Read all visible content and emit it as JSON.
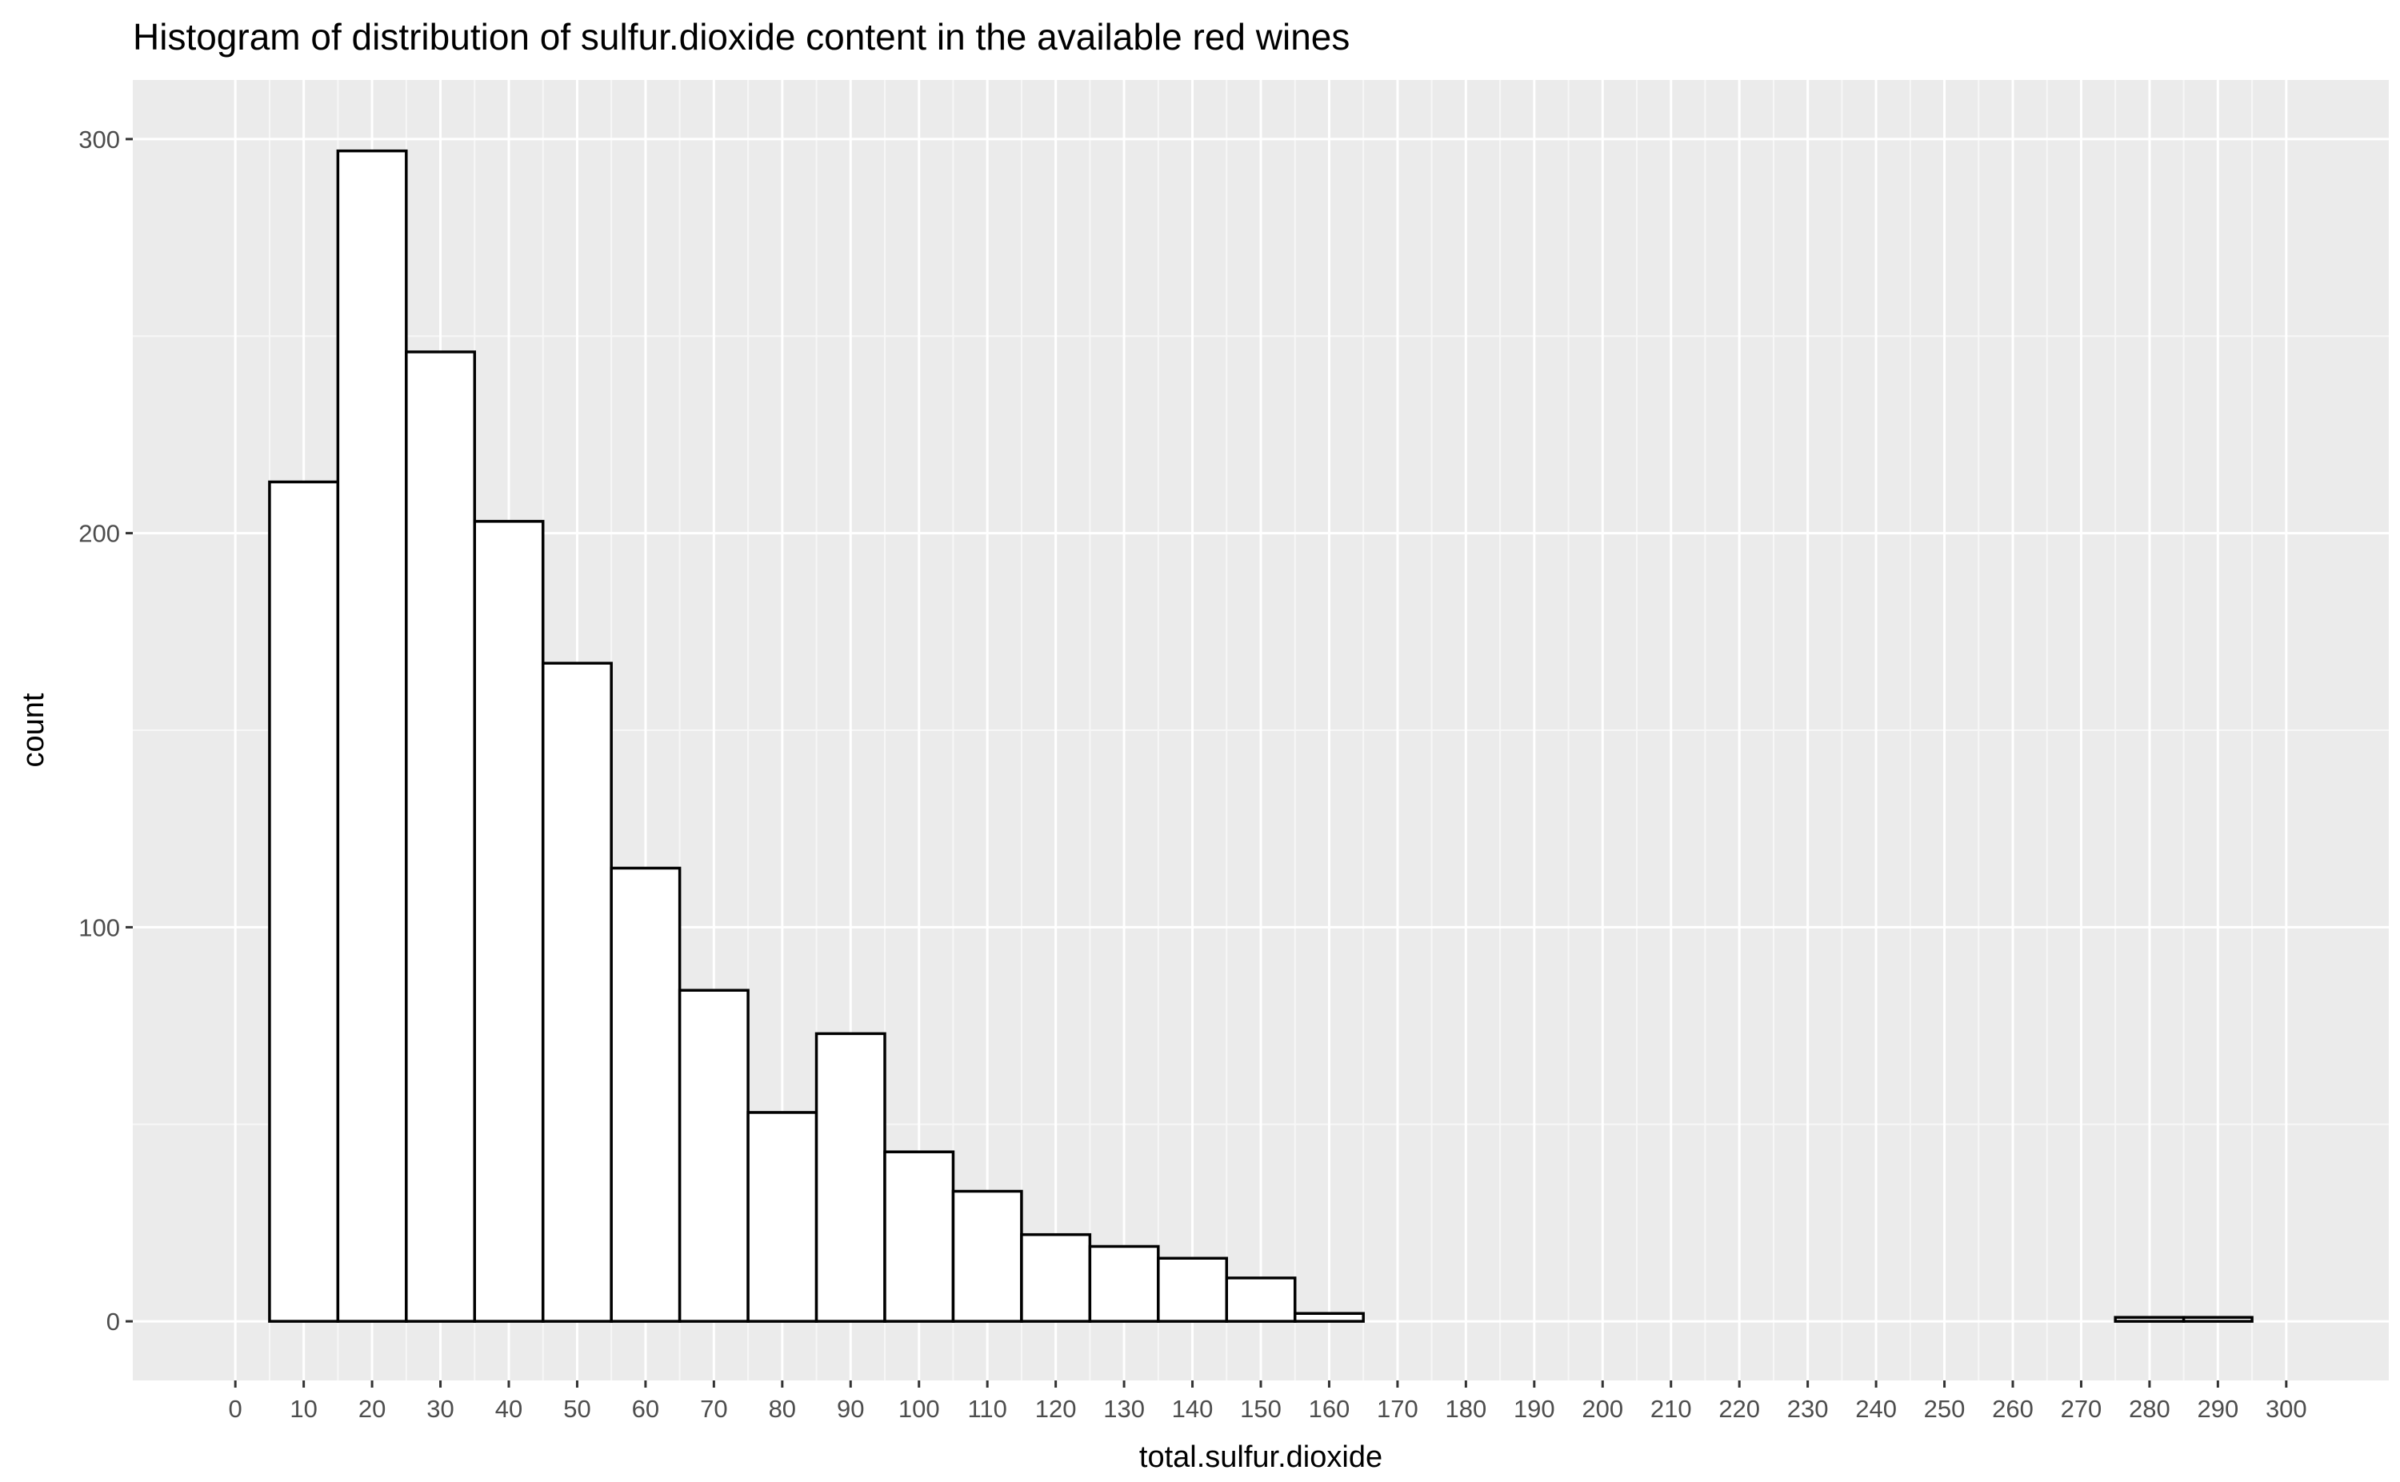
{
  "chart_data": {
    "type": "histogram",
    "title": "Histogram of distribution of sulfur.dioxide content in the available red wines",
    "xlabel": "total.sulfur.dioxide",
    "ylabel": "count",
    "xlim": [
      -15,
      315
    ],
    "ylim": [
      -15,
      315
    ],
    "x_ticks": [
      0,
      10,
      20,
      30,
      40,
      50,
      60,
      70,
      80,
      90,
      100,
      110,
      120,
      130,
      140,
      150,
      160,
      170,
      180,
      190,
      200,
      210,
      220,
      230,
      240,
      250,
      260,
      270,
      280,
      290,
      300
    ],
    "y_ticks": [
      0,
      100,
      200,
      300
    ],
    "grid": true,
    "bin_width": 10,
    "bars": [
      {
        "x0": 5,
        "x1": 15,
        "count": 213
      },
      {
        "x0": 15,
        "x1": 25,
        "count": 297
      },
      {
        "x0": 25,
        "x1": 35,
        "count": 246
      },
      {
        "x0": 35,
        "x1": 45,
        "count": 203
      },
      {
        "x0": 45,
        "x1": 55,
        "count": 167
      },
      {
        "x0": 55,
        "x1": 65,
        "count": 115
      },
      {
        "x0": 65,
        "x1": 75,
        "count": 84
      },
      {
        "x0": 75,
        "x1": 85,
        "count": 53
      },
      {
        "x0": 85,
        "x1": 95,
        "count": 73
      },
      {
        "x0": 95,
        "x1": 105,
        "count": 43
      },
      {
        "x0": 105,
        "x1": 115,
        "count": 33
      },
      {
        "x0": 115,
        "x1": 125,
        "count": 22
      },
      {
        "x0": 125,
        "x1": 135,
        "count": 19
      },
      {
        "x0": 135,
        "x1": 145,
        "count": 16
      },
      {
        "x0": 145,
        "x1": 155,
        "count": 11
      },
      {
        "x0": 155,
        "x1": 165,
        "count": 2
      },
      {
        "x0": 165,
        "x1": 175,
        "count": 0
      },
      {
        "x0": 175,
        "x1": 185,
        "count": 0
      },
      {
        "x0": 185,
        "x1": 195,
        "count": 0
      },
      {
        "x0": 195,
        "x1": 205,
        "count": 0
      },
      {
        "x0": 205,
        "x1": 215,
        "count": 0
      },
      {
        "x0": 215,
        "x1": 225,
        "count": 0
      },
      {
        "x0": 225,
        "x1": 235,
        "count": 0
      },
      {
        "x0": 235,
        "x1": 245,
        "count": 0
      },
      {
        "x0": 245,
        "x1": 255,
        "count": 0
      },
      {
        "x0": 255,
        "x1": 265,
        "count": 0
      },
      {
        "x0": 265,
        "x1": 275,
        "count": 0
      },
      {
        "x0": 275,
        "x1": 285,
        "count": 1
      },
      {
        "x0": 285,
        "x1": 295,
        "count": 1
      }
    ],
    "colors": {
      "panel_background": "#ebebeb",
      "grid_major": "#ffffff",
      "grid_minor": "#f7f7f7",
      "bar_fill": "#ffffff",
      "bar_outline": "#000000",
      "tick_label": "#4d4d4d",
      "tick_mark": "#333333"
    }
  }
}
